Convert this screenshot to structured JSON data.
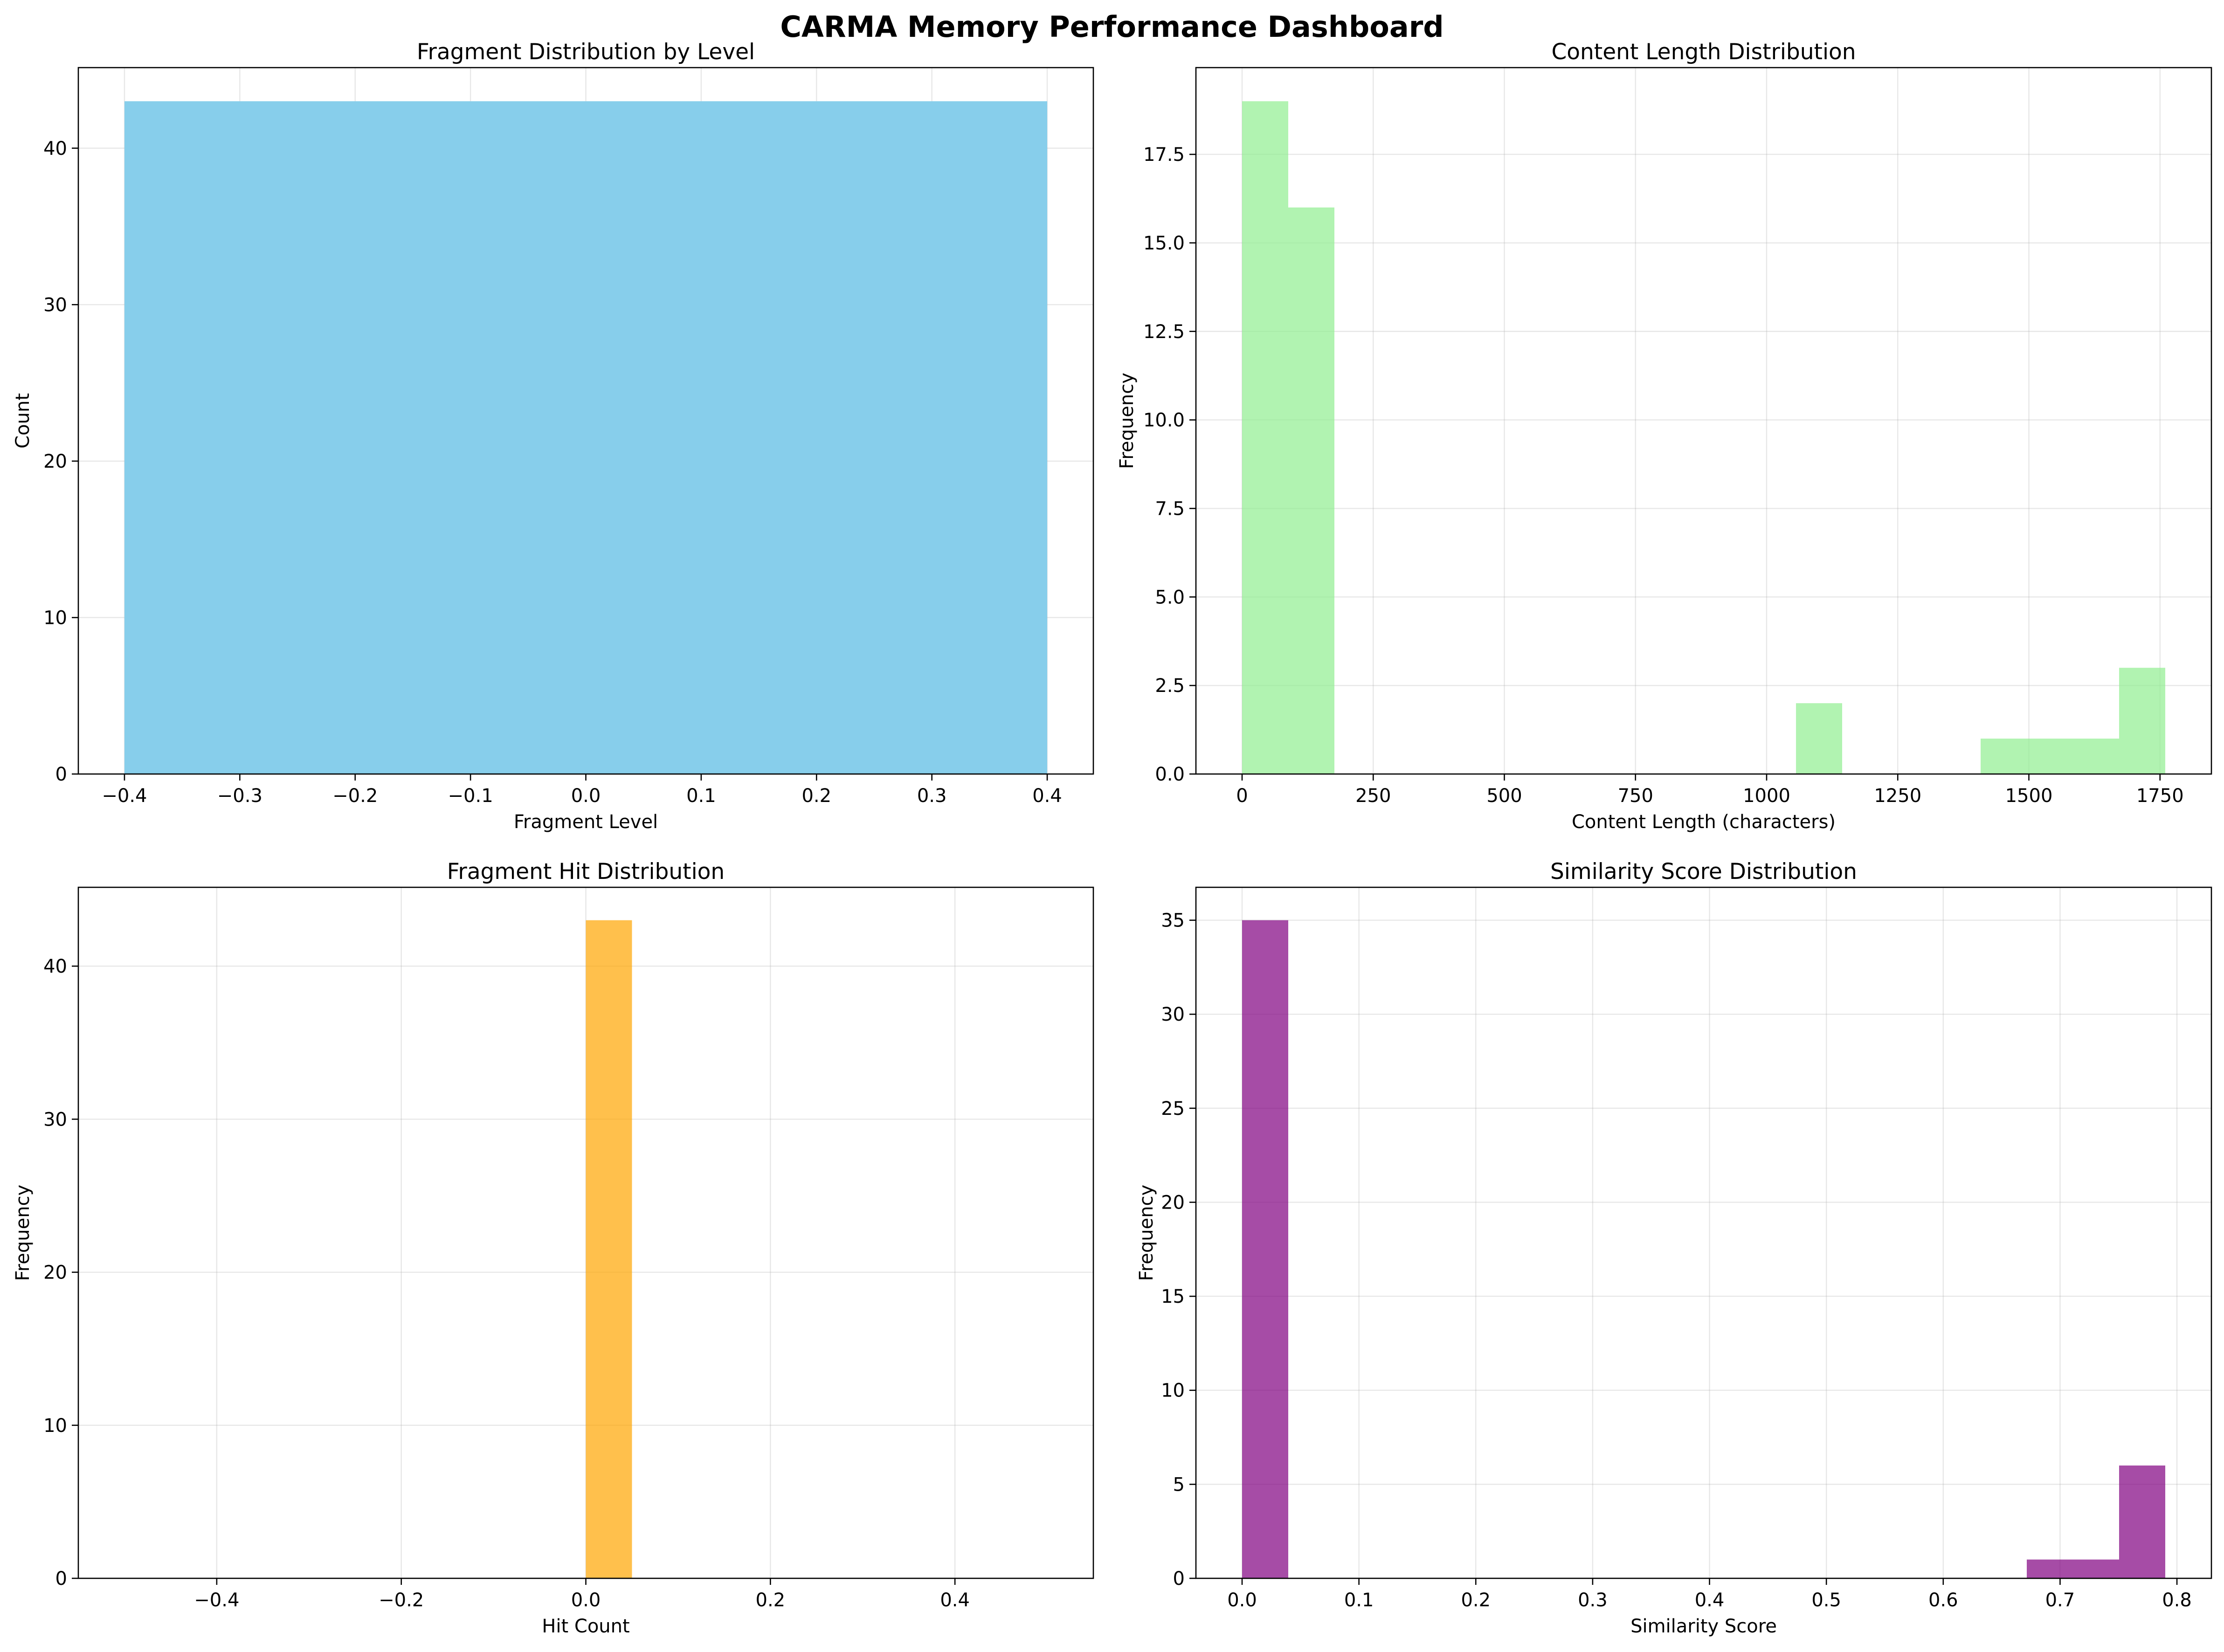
{
  "title": "CARMA Memory Performance Dashboard",
  "chart_data": [
    {
      "type": "bar",
      "title": "Fragment Distribution by Level",
      "xlabel": "Fragment Level",
      "ylabel": "Count",
      "xlim": [
        -0.44,
        0.44
      ],
      "ylim": [
        0,
        45.15
      ],
      "xticks": [
        -0.4,
        -0.3,
        -0.2,
        -0.1,
        0.0,
        0.1,
        0.2,
        0.3,
        0.4
      ],
      "xtick_labels": [
        "−0.4",
        "−0.3",
        "−0.2",
        "−0.1",
        "0.0",
        "0.1",
        "0.2",
        "0.3",
        "0.4"
      ],
      "yticks": [
        0,
        10,
        20,
        30,
        40
      ],
      "ytick_labels": [
        "0",
        "10",
        "20",
        "30",
        "40"
      ],
      "grid": true,
      "color": "#87ceeb",
      "bins": [
        {
          "x0": -0.4,
          "x1": 0.4,
          "value": 43
        }
      ]
    },
    {
      "type": "bar",
      "title": "Content Length Distribution",
      "xlabel": "Content Length (characters)",
      "ylabel": "Frequency",
      "xlim": [
        -88,
        1848
      ],
      "ylim": [
        0,
        19.95
      ],
      "xticks": [
        0,
        250,
        500,
        750,
        1000,
        1250,
        1500,
        1750
      ],
      "xtick_labels": [
        "0",
        "250",
        "500",
        "750",
        "1000",
        "1250",
        "1500",
        "1750"
      ],
      "yticks": [
        0.0,
        2.5,
        5.0,
        7.5,
        10.0,
        12.5,
        15.0,
        17.5
      ],
      "ytick_labels": [
        "0.0",
        "2.5",
        "5.0",
        "7.5",
        "10.0",
        "12.5",
        "15.0",
        "17.5"
      ],
      "grid": true,
      "color": "#90ee90",
      "bins": [
        {
          "x0": 0,
          "x1": 88,
          "value": 19
        },
        {
          "x0": 88,
          "x1": 176,
          "value": 16
        },
        {
          "x0": 1056,
          "x1": 1144,
          "value": 2
        },
        {
          "x0": 1408,
          "x1": 1496,
          "value": 1
        },
        {
          "x0": 1496,
          "x1": 1584,
          "value": 1
        },
        {
          "x0": 1584,
          "x1": 1672,
          "value": 1
        },
        {
          "x0": 1672,
          "x1": 1760,
          "value": 3
        }
      ]
    },
    {
      "type": "bar",
      "title": "Fragment Hit Distribution",
      "xlabel": "Hit Count",
      "ylabel": "Frequency",
      "xlim": [
        -0.55,
        0.55
      ],
      "ylim": [
        0,
        45.15
      ],
      "xticks": [
        -0.4,
        -0.2,
        0.0,
        0.2,
        0.4
      ],
      "xtick_labels": [
        "−0.4",
        "−0.2",
        "0.0",
        "0.2",
        "0.4"
      ],
      "yticks": [
        0,
        10,
        20,
        30,
        40
      ],
      "ytick_labels": [
        "0",
        "10",
        "20",
        "30",
        "40"
      ],
      "grid": true,
      "color": "#ffa500",
      "bins": [
        {
          "x0": 0.0,
          "x1": 0.05,
          "value": 43
        }
      ]
    },
    {
      "type": "bar",
      "title": "Similarity Score Distribution",
      "xlabel": "Similarity Score",
      "ylabel": "Frequency",
      "xlim": [
        -0.0395,
        0.8295
      ],
      "ylim": [
        0,
        36.75
      ],
      "xticks": [
        0.0,
        0.1,
        0.2,
        0.3,
        0.4,
        0.5,
        0.6,
        0.7,
        0.8
      ],
      "xtick_labels": [
        "0.0",
        "0.1",
        "0.2",
        "0.3",
        "0.4",
        "0.5",
        "0.6",
        "0.7",
        "0.8"
      ],
      "yticks": [
        0,
        5,
        10,
        15,
        20,
        25,
        30,
        35
      ],
      "ytick_labels": [
        "0",
        "5",
        "10",
        "15",
        "20",
        "25",
        "30",
        "35"
      ],
      "grid": true,
      "color": "#800080",
      "bins": [
        {
          "x0": 0.0,
          "x1": 0.0395,
          "value": 35
        },
        {
          "x0": 0.6715,
          "x1": 0.711,
          "value": 1
        },
        {
          "x0": 0.711,
          "x1": 0.7505,
          "value": 1
        },
        {
          "x0": 0.7505,
          "x1": 0.79,
          "value": 6
        }
      ]
    }
  ]
}
